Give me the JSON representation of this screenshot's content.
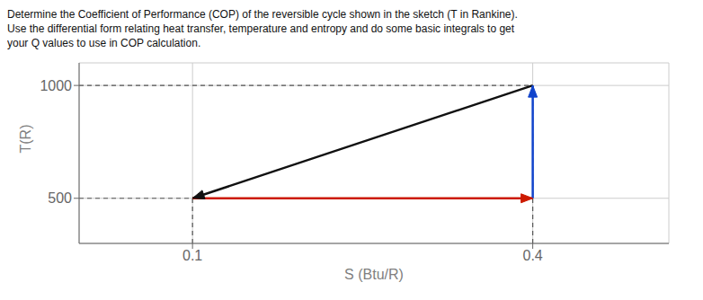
{
  "chart_data": {
    "type": "line",
    "title": "Determine the Coefficient of Performance (COP) of the reversible cycle shown in the sketch (T in Rankine).\nUse the differential form relating heat transfer, temperature and entropy and do some basic integrals to get\nyour Q values to use in COP calculation.",
    "xlabel": "S (Btu/R)",
    "ylabel": "T(R)",
    "xlim": [
      0.0,
      0.52
    ],
    "ylim": [
      300,
      1100
    ],
    "xticks": [
      0.1,
      0.4
    ],
    "yticks": [
      500,
      1000
    ],
    "grid": true,
    "series": [
      {
        "x": [
          0.0,
          0.4
        ],
        "values": [
          1000,
          1000
        ],
        "color": "#555555",
        "line_style": "dashed"
      },
      {
        "x": [
          0.0,
          0.4
        ],
        "values": [
          500,
          500
        ],
        "color": "#555555",
        "line_style": "dashed"
      },
      {
        "x": [
          0.1,
          0.1
        ],
        "values": [
          300,
          500
        ],
        "color": "#555555",
        "line_style": "dashed"
      },
      {
        "x": [
          0.4,
          0.4
        ],
        "values": [
          300,
          1000
        ],
        "color": "#555555",
        "line_style": "dashed"
      },
      {
        "x": [
          0.4,
          0.1
        ],
        "values": [
          1000,
          500
        ],
        "color": "#111111",
        "line_style": "solid",
        "marker": "arrow"
      },
      {
        "x": [
          0.1,
          0.4
        ],
        "values": [
          500,
          500
        ],
        "color": "#cc1a00",
        "line_style": "solid",
        "marker": "arrow"
      },
      {
        "x": [
          0.4,
          0.4
        ],
        "values": [
          500,
          1000
        ],
        "color": "#1144cc",
        "line_style": "solid",
        "marker": "arrow"
      }
    ]
  }
}
